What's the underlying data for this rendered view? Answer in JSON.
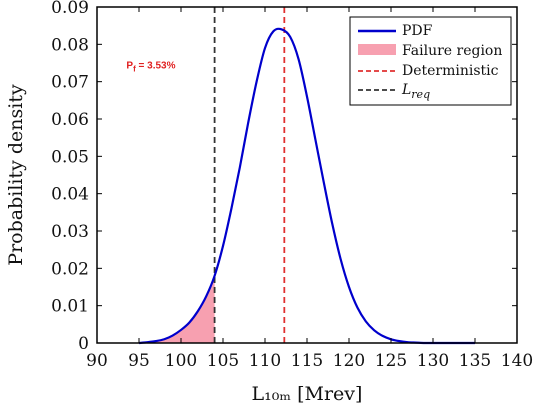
{
  "chart_data": {
    "type": "line",
    "xlabel": "L₁₀ₘ [Mrev]",
    "ylabel": "Probability density",
    "xlim": [
      90,
      140
    ],
    "ylim": [
      0,
      0.09
    ],
    "xticks": [
      90,
      95,
      100,
      105,
      110,
      115,
      120,
      125,
      130,
      135,
      140
    ],
    "yticks": [
      0,
      0.01,
      0.02,
      0.03,
      0.04,
      0.05,
      0.06,
      0.07,
      0.08,
      0.09
    ],
    "xtick_labels": [
      "90",
      "95",
      "100",
      "105",
      "110",
      "115",
      "120",
      "125",
      "130",
      "135",
      "140"
    ],
    "ytick_labels": [
      "0",
      "0.01",
      "0.02",
      "0.03",
      "0.04",
      "0.05",
      "0.06",
      "0.07",
      "0.08",
      "0.09"
    ],
    "grid": false,
    "legend_position": "top-right",
    "series": [
      {
        "name": "PDF",
        "color": "#0000cc",
        "x": [
          95,
          96,
          97,
          98,
          99,
          100,
          101,
          102,
          103,
          104,
          105,
          106,
          107,
          108,
          109,
          110,
          111,
          112,
          113,
          114,
          115,
          116,
          117,
          118,
          119,
          120,
          121,
          122,
          123,
          124,
          125,
          126,
          127,
          128,
          129,
          130,
          131,
          132,
          133,
          134,
          135
        ],
        "y": [
          0.0,
          0.0002,
          0.0005,
          0.001,
          0.002,
          0.0035,
          0.0055,
          0.0085,
          0.0125,
          0.018,
          0.026,
          0.036,
          0.047,
          0.059,
          0.07,
          0.079,
          0.0835,
          0.084,
          0.082,
          0.076,
          0.066,
          0.0545,
          0.043,
          0.032,
          0.0225,
          0.015,
          0.0095,
          0.0058,
          0.0034,
          0.0019,
          0.001,
          0.0005,
          0.0002,
          0.0001,
          0.0,
          0.0,
          0.0,
          0.0,
          0.0,
          0.0,
          0.0
        ]
      }
    ],
    "failure_region": {
      "name": "Failure region",
      "color": "#f7a0b0",
      "x_end": 104
    },
    "reference_lines": [
      {
        "name": "Deterministic",
        "x": 112.3,
        "color": "#e03030"
      },
      {
        "name": "L_req",
        "x": 104,
        "color": "#333333"
      }
    ],
    "annotation": {
      "text_main": "P",
      "text_sub": "f",
      "text_rest": " = 3.53%",
      "x": 93.5,
      "y": 0.0735
    }
  }
}
